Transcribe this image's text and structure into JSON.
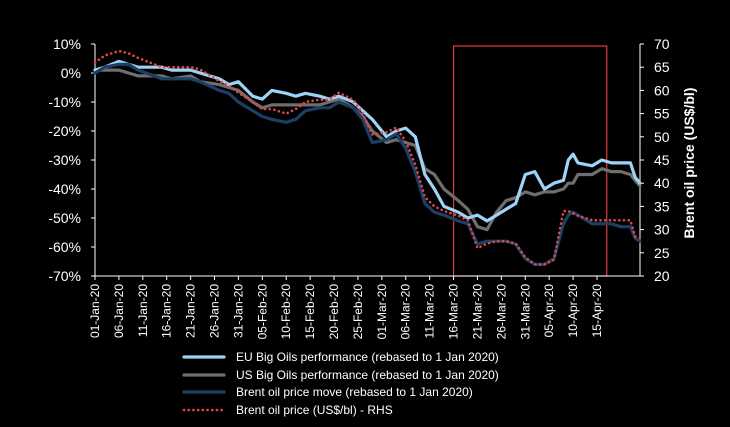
{
  "chart_data": {
    "type": "line",
    "xlabel": "",
    "ylabel_left": "",
    "ylabel_right": "Brent oil price (US$/bl)",
    "y_left_ticks": [
      "10%",
      "0%",
      "-10%",
      "-20%",
      "-30%",
      "-40%",
      "-50%",
      "-60%",
      "-70%"
    ],
    "y_right_ticks": [
      "70",
      "65",
      "60",
      "55",
      "50",
      "45",
      "40",
      "35",
      "30",
      "25",
      "20"
    ],
    "ylim_left": [
      -70,
      10
    ],
    "ylim_right": [
      20,
      70
    ],
    "grid": false,
    "legend_position": "bottom",
    "x_tick_labels": [
      "01-Jan-20",
      "06-Jan-20",
      "11-Jan-20",
      "16-Jan-20",
      "21-Jan-20",
      "26-Jan-20",
      "31-Jan-20",
      "05-Feb-20",
      "10-Feb-20",
      "15-Feb-20",
      "20-Feb-20",
      "25-Feb-20",
      "01-Mar-20",
      "06-Mar-20",
      "11-Mar-20",
      "16-Mar-20",
      "21-Mar-20",
      "26-Mar-20",
      "31-Mar-20",
      "05-Apr-20",
      "10-Apr-20",
      "15-Apr-20"
    ],
    "highlight_box": {
      "from_date": "2020-03-16",
      "to_date": "2020-04-16",
      "color": "#e03a3a"
    },
    "series": [
      {
        "name": "EU Big Oils performance (rebased to 1 Jan 2020)",
        "axis": "left",
        "color": "#9fd3f5",
        "style": "solid",
        "points": [
          [
            "2020-01-01",
            1
          ],
          [
            "2020-01-03",
            2
          ],
          [
            "2020-01-06",
            4
          ],
          [
            "2020-01-08",
            3
          ],
          [
            "2020-01-10",
            2
          ],
          [
            "2020-01-15",
            2
          ],
          [
            "2020-01-17",
            1
          ],
          [
            "2020-01-21",
            1
          ],
          [
            "2020-01-23",
            0
          ],
          [
            "2020-01-27",
            -2
          ],
          [
            "2020-01-29",
            -4
          ],
          [
            "2020-01-31",
            -3
          ],
          [
            "2020-02-03",
            -8
          ],
          [
            "2020-02-05",
            -9
          ],
          [
            "2020-02-07",
            -6
          ],
          [
            "2020-02-10",
            -7
          ],
          [
            "2020-02-12",
            -8
          ],
          [
            "2020-02-14",
            -7
          ],
          [
            "2020-02-17",
            -8
          ],
          [
            "2020-02-19",
            -9
          ],
          [
            "2020-02-21",
            -8
          ],
          [
            "2020-02-24",
            -10
          ],
          [
            "2020-02-26",
            -13
          ],
          [
            "2020-02-28",
            -16
          ],
          [
            "2020-03-02",
            -22
          ],
          [
            "2020-03-04",
            -20
          ],
          [
            "2020-03-06",
            -19
          ],
          [
            "2020-03-08",
            -22
          ],
          [
            "2020-03-10",
            -35
          ],
          [
            "2020-03-12",
            -40
          ],
          [
            "2020-03-14",
            -46
          ],
          [
            "2020-03-17",
            -48
          ],
          [
            "2020-03-19",
            -50
          ],
          [
            "2020-03-21",
            -49
          ],
          [
            "2020-03-23",
            -51
          ],
          [
            "2020-03-25",
            -49
          ],
          [
            "2020-03-27",
            -47
          ],
          [
            "2020-03-29",
            -45
          ],
          [
            "2020-03-31",
            -35
          ],
          [
            "2020-04-02",
            -34
          ],
          [
            "2020-04-04",
            -40
          ],
          [
            "2020-04-06",
            -38
          ],
          [
            "2020-04-08",
            -37
          ],
          [
            "2020-04-09",
            -30
          ],
          [
            "2020-04-10",
            -28
          ],
          [
            "2020-04-11",
            -31
          ],
          [
            "2020-04-14",
            -32
          ],
          [
            "2020-04-16",
            -30
          ],
          [
            "2020-04-18",
            -31
          ],
          [
            "2020-04-20",
            -31
          ],
          [
            "2020-04-22",
            -31
          ],
          [
            "2020-04-23",
            -36
          ],
          [
            "2020-04-24",
            -38
          ]
        ]
      },
      {
        "name": "US Big Oils performance (rebased to 1 Jan 2020)",
        "axis": "left",
        "color": "#6e6e6e",
        "style": "solid",
        "points": [
          [
            "2020-01-01",
            1
          ],
          [
            "2020-01-03",
            1
          ],
          [
            "2020-01-06",
            1
          ],
          [
            "2020-01-08",
            0
          ],
          [
            "2020-01-10",
            -1
          ],
          [
            "2020-01-15",
            -1
          ],
          [
            "2020-01-17",
            -2
          ],
          [
            "2020-01-21",
            -1
          ],
          [
            "2020-01-23",
            -3
          ],
          [
            "2020-01-27",
            -4
          ],
          [
            "2020-01-29",
            -5
          ],
          [
            "2020-01-31",
            -6
          ],
          [
            "2020-02-03",
            -10
          ],
          [
            "2020-02-05",
            -12
          ],
          [
            "2020-02-07",
            -11
          ],
          [
            "2020-02-10",
            -11
          ],
          [
            "2020-02-12",
            -11
          ],
          [
            "2020-02-14",
            -11
          ],
          [
            "2020-02-17",
            -11
          ],
          [
            "2020-02-19",
            -10
          ],
          [
            "2020-02-21",
            -9
          ],
          [
            "2020-02-24",
            -12
          ],
          [
            "2020-02-26",
            -15
          ],
          [
            "2020-02-28",
            -20
          ],
          [
            "2020-03-02",
            -24
          ],
          [
            "2020-03-04",
            -23
          ],
          [
            "2020-03-06",
            -24
          ],
          [
            "2020-03-08",
            -25
          ],
          [
            "2020-03-10",
            -33
          ],
          [
            "2020-03-12",
            -35
          ],
          [
            "2020-03-14",
            -40
          ],
          [
            "2020-03-17",
            -44
          ],
          [
            "2020-03-19",
            -47
          ],
          [
            "2020-03-21",
            -53
          ],
          [
            "2020-03-23",
            -54
          ],
          [
            "2020-03-25",
            -48
          ],
          [
            "2020-03-27",
            -44
          ],
          [
            "2020-03-29",
            -43
          ],
          [
            "2020-03-31",
            -41
          ],
          [
            "2020-04-02",
            -42
          ],
          [
            "2020-04-04",
            -41
          ],
          [
            "2020-04-06",
            -41
          ],
          [
            "2020-04-08",
            -40
          ],
          [
            "2020-04-09",
            -38
          ],
          [
            "2020-04-10",
            -38
          ],
          [
            "2020-04-11",
            -35
          ],
          [
            "2020-04-14",
            -35
          ],
          [
            "2020-04-16",
            -33
          ],
          [
            "2020-04-18",
            -34
          ],
          [
            "2020-04-20",
            -34
          ],
          [
            "2020-04-22",
            -35
          ],
          [
            "2020-04-23",
            -37
          ],
          [
            "2020-04-24",
            -39
          ]
        ]
      },
      {
        "name": "Brent oil price move (rebased to 1 Jan 2020)",
        "axis": "left",
        "color": "#1c3f66",
        "style": "solid",
        "points": [
          [
            "2020-01-01",
            0
          ],
          [
            "2020-01-03",
            2
          ],
          [
            "2020-01-06",
            3
          ],
          [
            "2020-01-08",
            3
          ],
          [
            "2020-01-10",
            1
          ],
          [
            "2020-01-15",
            -2
          ],
          [
            "2020-01-17",
            -2
          ],
          [
            "2020-01-21",
            -2
          ],
          [
            "2020-01-23",
            -3
          ],
          [
            "2020-01-27",
            -6
          ],
          [
            "2020-01-29",
            -7
          ],
          [
            "2020-01-31",
            -10
          ],
          [
            "2020-02-03",
            -13
          ],
          [
            "2020-02-05",
            -15
          ],
          [
            "2020-02-07",
            -16
          ],
          [
            "2020-02-10",
            -17
          ],
          [
            "2020-02-12",
            -16
          ],
          [
            "2020-02-14",
            -13
          ],
          [
            "2020-02-17",
            -12
          ],
          [
            "2020-02-19",
            -12
          ],
          [
            "2020-02-21",
            -10
          ],
          [
            "2020-02-24",
            -12
          ],
          [
            "2020-02-26",
            -16
          ],
          [
            "2020-02-28",
            -24
          ],
          [
            "2020-03-02",
            -23
          ],
          [
            "2020-03-04",
            -21
          ],
          [
            "2020-03-06",
            -26
          ],
          [
            "2020-03-08",
            -34
          ],
          [
            "2020-03-10",
            -45
          ],
          [
            "2020-03-12",
            -48
          ],
          [
            "2020-03-14",
            -49
          ],
          [
            "2020-03-17",
            -51
          ],
          [
            "2020-03-19",
            -52
          ],
          [
            "2020-03-21",
            -59
          ],
          [
            "2020-03-23",
            -58
          ],
          [
            "2020-03-25",
            -58
          ],
          [
            "2020-03-27",
            -58
          ],
          [
            "2020-03-29",
            -59
          ],
          [
            "2020-03-31",
            -64
          ],
          [
            "2020-04-02",
            -66
          ],
          [
            "2020-04-04",
            -66
          ],
          [
            "2020-04-06",
            -64
          ],
          [
            "2020-04-08",
            -52
          ],
          [
            "2020-04-09",
            -49
          ],
          [
            "2020-04-10",
            -48
          ],
          [
            "2020-04-11",
            -49
          ],
          [
            "2020-04-14",
            -52
          ],
          [
            "2020-04-16",
            -52
          ],
          [
            "2020-04-18",
            -52
          ],
          [
            "2020-04-20",
            -53
          ],
          [
            "2020-04-22",
            -53
          ],
          [
            "2020-04-23",
            -57
          ],
          [
            "2020-04-24",
            -58
          ]
        ]
      },
      {
        "name": "Brent oil price (US$/bl) - RHS",
        "axis": "right",
        "color": "#e04848",
        "style": "dotted",
        "points": [
          [
            "2020-01-01",
            66
          ],
          [
            "2020-01-03",
            67.5
          ],
          [
            "2020-01-06",
            68.5
          ],
          [
            "2020-01-08",
            68
          ],
          [
            "2020-01-10",
            67
          ],
          [
            "2020-01-15",
            65
          ],
          [
            "2020-01-17",
            65
          ],
          [
            "2020-01-21",
            65
          ],
          [
            "2020-01-23",
            64.5
          ],
          [
            "2020-01-27",
            62
          ],
          [
            "2020-01-29",
            61
          ],
          [
            "2020-01-31",
            59.5
          ],
          [
            "2020-02-03",
            57.5
          ],
          [
            "2020-02-05",
            56
          ],
          [
            "2020-02-07",
            56
          ],
          [
            "2020-02-10",
            55
          ],
          [
            "2020-02-12",
            56
          ],
          [
            "2020-02-14",
            57.5
          ],
          [
            "2020-02-17",
            58
          ],
          [
            "2020-02-19",
            58
          ],
          [
            "2020-02-21",
            59.5
          ],
          [
            "2020-02-24",
            58
          ],
          [
            "2020-02-26",
            55
          ],
          [
            "2020-02-28",
            50.5
          ],
          [
            "2020-03-02",
            51
          ],
          [
            "2020-03-04",
            52
          ],
          [
            "2020-03-06",
            49
          ],
          [
            "2020-03-08",
            44
          ],
          [
            "2020-03-10",
            37
          ],
          [
            "2020-03-12",
            35
          ],
          [
            "2020-03-14",
            34
          ],
          [
            "2020-03-17",
            33
          ],
          [
            "2020-03-19",
            32
          ],
          [
            "2020-03-21",
            26
          ],
          [
            "2020-03-23",
            27
          ],
          [
            "2020-03-25",
            27.5
          ],
          [
            "2020-03-27",
            27.5
          ],
          [
            "2020-03-29",
            27
          ],
          [
            "2020-03-31",
            24
          ],
          [
            "2020-04-02",
            22.5
          ],
          [
            "2020-04-04",
            22.5
          ],
          [
            "2020-04-06",
            23.5
          ],
          [
            "2020-04-08",
            34
          ],
          [
            "2020-04-09",
            34
          ],
          [
            "2020-04-10",
            33.5
          ],
          [
            "2020-04-11",
            33
          ],
          [
            "2020-04-14",
            32
          ],
          [
            "2020-04-16",
            32
          ],
          [
            "2020-04-18",
            32
          ],
          [
            "2020-04-20",
            32
          ],
          [
            "2020-04-22",
            32
          ],
          [
            "2020-04-23",
            28.5
          ],
          [
            "2020-04-24",
            28.5
          ]
        ]
      }
    ]
  }
}
